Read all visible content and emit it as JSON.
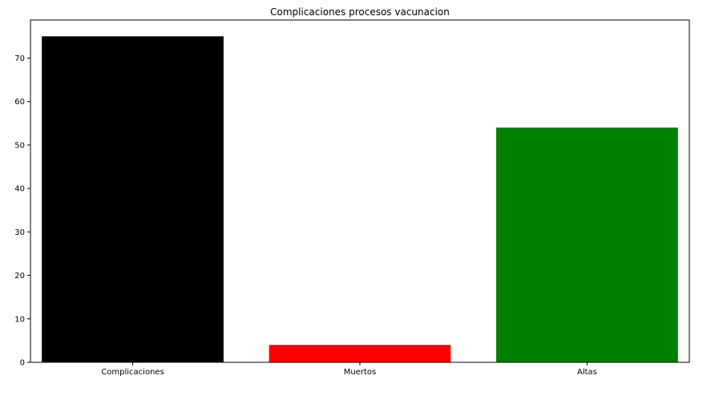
{
  "chart_data": {
    "type": "bar",
    "title": "Complicaciones procesos vacunacion",
    "xlabel": "",
    "ylabel": "",
    "categories": [
      "Complicaciones",
      "Muertos",
      "Altas"
    ],
    "values": [
      75,
      4,
      54
    ],
    "colors": [
      "#000000",
      "#ff0000",
      "#008000"
    ],
    "ylim": [
      0,
      78.75
    ],
    "yticks": [
      0,
      10,
      20,
      30,
      40,
      50,
      60,
      70
    ],
    "grid": false,
    "legend": "none"
  }
}
